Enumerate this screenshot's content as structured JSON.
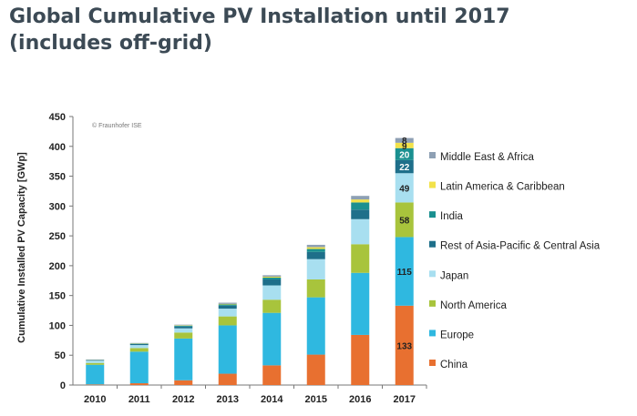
{
  "title_line1": "Global Cumulative PV Installation until 2017",
  "title_line2": "(includes off-grid)",
  "credit": "© Fraunhofer ISE",
  "chart_data": {
    "type": "bar",
    "stacked": true,
    "ylabel": "Cumulative Installed PV Capacity [GWp]",
    "xlabel": "",
    "ylim": [
      0,
      450
    ],
    "yticks": [
      0,
      50,
      100,
      150,
      200,
      250,
      300,
      350,
      400,
      450
    ],
    "grid": false,
    "legend_position": "right",
    "categories": [
      "2010",
      "2011",
      "2012",
      "2013",
      "2014",
      "2015",
      "2016",
      "2017"
    ],
    "series": [
      {
        "name": "China",
        "color": "#e87030",
        "values": [
          1,
          3,
          8,
          19,
          33,
          51,
          84,
          133
        ],
        "labels": [
          "",
          "",
          "",
          "",
          "",
          "",
          "",
          "133"
        ],
        "label_color": "#222222"
      },
      {
        "name": "Europe",
        "color": "#2fb8e0",
        "values": [
          33,
          53,
          70,
          81,
          88,
          96,
          104,
          115
        ],
        "labels": [
          "",
          "",
          "",
          "",
          "",
          "",
          "",
          "115"
        ],
        "label_color": "#222222"
      },
      {
        "name": "North America",
        "color": "#a8c43c",
        "values": [
          3,
          6,
          10,
          15,
          22,
          30,
          48,
          58
        ],
        "labels": [
          "",
          "",
          "",
          "",
          "",
          "",
          "",
          "58"
        ],
        "label_color": "#222222"
      },
      {
        "name": "Japan",
        "color": "#a8dff0",
        "values": [
          4,
          5,
          7,
          13,
          24,
          34,
          42,
          49
        ],
        "labels": [
          "",
          "",
          "",
          "",
          "",
          "",
          "",
          "49"
        ],
        "label_color": "#222222"
      },
      {
        "name": "Rest of Asia-Pacific & Central Asia",
        "color": "#1e6f8a",
        "values": [
          1,
          2,
          3,
          5,
          10,
          12,
          16,
          22
        ],
        "labels": [
          "",
          "",
          "",
          "",
          "",
          "",
          "",
          "22"
        ],
        "label_color": "#ffffff"
      },
      {
        "name": "India",
        "color": "#1a9090",
        "values": [
          0,
          0.5,
          1.5,
          2,
          3,
          5,
          12,
          20
        ],
        "labels": [
          "",
          "",
          "",
          "",
          "",
          "",
          "",
          "20"
        ],
        "label_color": "#ffffff"
      },
      {
        "name": "Latin America & Caribbean",
        "color": "#f2e24a",
        "values": [
          0.3,
          0.5,
          0.7,
          1,
          1.5,
          3,
          5,
          9
        ],
        "labels": [
          "",
          "",
          "",
          "",
          "",
          "",
          "",
          "9"
        ],
        "label_color": "#222222"
      },
      {
        "name": "Middle East & Africa",
        "color": "#8ea0b4",
        "values": [
          0.3,
          0.5,
          1,
          2,
          2.5,
          4,
          6,
          8
        ],
        "labels": [
          "",
          "",
          "",
          "",
          "",
          "",
          "",
          "8"
        ],
        "label_color": "#222222"
      }
    ]
  }
}
